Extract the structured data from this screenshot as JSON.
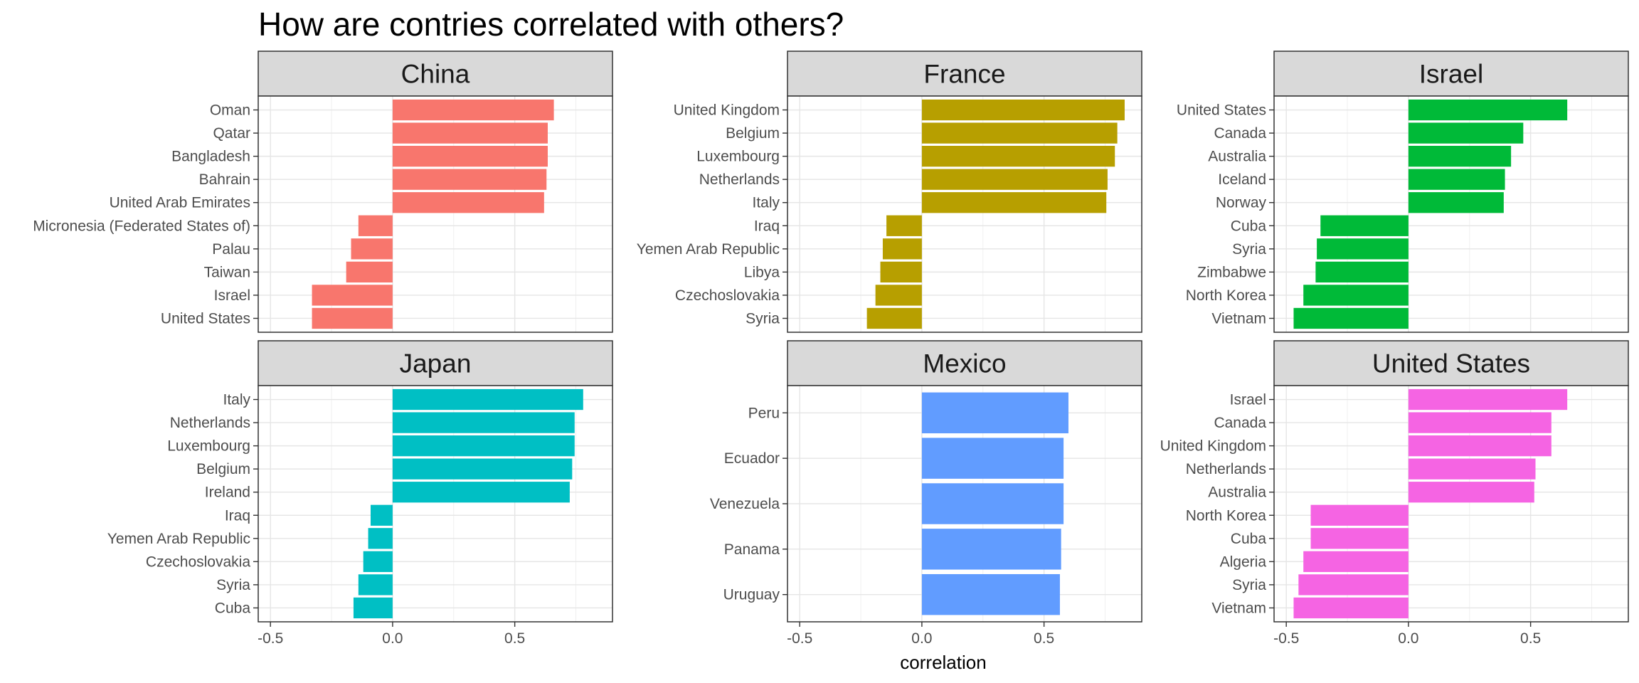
{
  "chart_data": {
    "type": "bar",
    "orientation": "horizontal",
    "title": "How are contries correlated with others?",
    "xlabel": "correlation",
    "ylabel": "",
    "xlim": [
      -0.55,
      0.9
    ],
    "x_ticks": [
      "-0.5",
      "0.0",
      "0.5"
    ],
    "grid": true,
    "legend": "none",
    "panels": [
      {
        "name": "China",
        "color": "#F8766D",
        "categories": [
          "Oman",
          "Qatar",
          "Bangladesh",
          "Bahrain",
          "United Arab Emirates",
          "Micronesia (Federated States of)",
          "Palau",
          "Taiwan",
          "Israel",
          "United States"
        ],
        "values": [
          0.66,
          0.635,
          0.635,
          0.63,
          0.62,
          -0.14,
          -0.17,
          -0.19,
          -0.33,
          -0.33
        ]
      },
      {
        "name": "France",
        "color": "#B79F00",
        "categories": [
          "United Kingdom",
          "Belgium",
          "Luxembourg",
          "Netherlands",
          "Italy",
          "Iraq",
          "Yemen Arab Republic",
          "Libya",
          "Czechoslovakia",
          "Syria"
        ],
        "values": [
          0.83,
          0.8,
          0.79,
          0.76,
          0.755,
          -0.145,
          -0.16,
          -0.17,
          -0.19,
          -0.225
        ]
      },
      {
        "name": "Israel",
        "color": "#00BA38",
        "categories": [
          "United States",
          "Canada",
          "Australia",
          "Iceland",
          "Norway",
          "Cuba",
          "Syria",
          "Zimbabwe",
          "North Korea",
          "Vietnam"
        ],
        "values": [
          0.65,
          0.47,
          0.42,
          0.395,
          0.39,
          -0.36,
          -0.375,
          -0.38,
          -0.43,
          -0.47
        ]
      },
      {
        "name": "Japan",
        "color": "#00BFC4",
        "categories": [
          "Italy",
          "Netherlands",
          "Luxembourg",
          "Belgium",
          "Ireland",
          "Iraq",
          "Yemen Arab Republic",
          "Czechoslovakia",
          "Syria",
          "Cuba"
        ],
        "values": [
          0.78,
          0.745,
          0.745,
          0.735,
          0.725,
          -0.09,
          -0.1,
          -0.12,
          -0.14,
          -0.16
        ]
      },
      {
        "name": "Mexico",
        "color": "#619CFF",
        "categories": [
          "Peru",
          "Ecuador",
          "Venezuela",
          "Panama",
          "Uruguay"
        ],
        "values": [
          0.6,
          0.58,
          0.58,
          0.57,
          0.565
        ]
      },
      {
        "name": "United States",
        "color": "#F564E3",
        "categories": [
          "Israel",
          "Canada",
          "United Kingdom",
          "Netherlands",
          "Australia",
          "North Korea",
          "Cuba",
          "Algeria",
          "Syria",
          "Vietnam"
        ],
        "values": [
          0.65,
          0.585,
          0.585,
          0.52,
          0.515,
          -0.4,
          -0.4,
          -0.43,
          -0.45,
          -0.47
        ]
      }
    ]
  }
}
